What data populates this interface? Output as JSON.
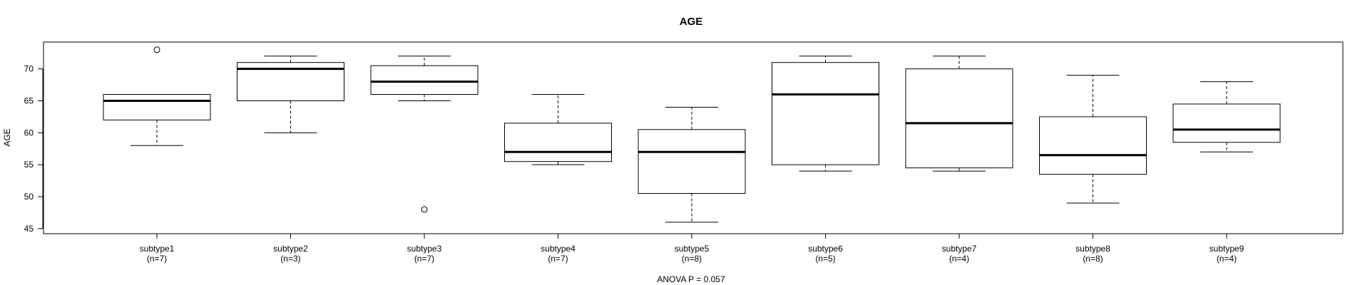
{
  "chart_data": {
    "type": "boxplot",
    "title": "AGE",
    "ylabel": "AGE",
    "xlabel": "ANOVA P = 0.057",
    "ylim": [
      44.2,
      74.2
    ],
    "yticks": [
      45,
      50,
      55,
      60,
      65,
      70
    ],
    "grid": false,
    "legend": "none",
    "categories": [
      {
        "name": "subtype1",
        "n": "(n=7)",
        "wlo": 58,
        "q1": 62,
        "med": 65,
        "q3": 66,
        "whi": 66,
        "outliers": [
          73
        ]
      },
      {
        "name": "subtype2",
        "n": "(n=3)",
        "wlo": 60,
        "q1": 65,
        "med": 70,
        "q3": 71,
        "whi": 72,
        "outliers": []
      },
      {
        "name": "subtype3",
        "n": "(n=7)",
        "wlo": 65,
        "q1": 66,
        "med": 68,
        "q3": 70.5,
        "whi": 72,
        "outliers": [
          48
        ]
      },
      {
        "name": "subtype4",
        "n": "(n=7)",
        "wlo": 55,
        "q1": 55.5,
        "med": 57,
        "q3": 61.5,
        "whi": 66,
        "outliers": []
      },
      {
        "name": "subtype5",
        "n": "(n=8)",
        "wlo": 46,
        "q1": 50.5,
        "med": 57,
        "q3": 60.5,
        "whi": 64,
        "outliers": []
      },
      {
        "name": "subtype6",
        "n": "(n=5)",
        "wlo": 54,
        "q1": 55,
        "med": 66,
        "q3": 71,
        "whi": 72,
        "outliers": []
      },
      {
        "name": "subtype7",
        "n": "(n=4)",
        "wlo": 54,
        "q1": 54.5,
        "med": 61.5,
        "q3": 70,
        "whi": 72,
        "outliers": []
      },
      {
        "name": "subtype8",
        "n": "(n=8)",
        "wlo": 49,
        "q1": 53.5,
        "med": 56.5,
        "q3": 62.5,
        "whi": 69,
        "outliers": []
      },
      {
        "name": "subtype9",
        "n": "(n=4)",
        "wlo": 57,
        "q1": 58.5,
        "med": 60.5,
        "q3": 64.5,
        "whi": 68,
        "outliers": []
      }
    ]
  }
}
